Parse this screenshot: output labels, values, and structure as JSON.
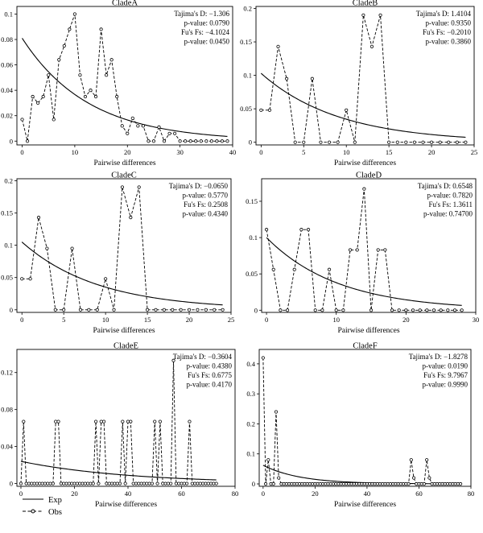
{
  "chart_data": [
    {
      "type": "line",
      "title": "CladeA",
      "xlabel": "Pairwise differences",
      "ylabel": "",
      "xlim": [
        -1,
        40
      ],
      "ylim": [
        -0.003,
        0.106
      ],
      "xticks": [
        0,
        10,
        20,
        30,
        40
      ],
      "yticks": [
        0,
        0.02,
        0.04,
        0.06,
        0.08,
        0.1
      ],
      "yticklabels": [
        "0",
        "0.02",
        "0.04",
        "0.06",
        "0.08",
        "0.1"
      ],
      "stats": [
        "Tajima's D: −1.306",
        "p-value: 0.0790",
        "Fu's Fs: −4.1024",
        "p-value: 0.0450"
      ],
      "exp": {
        "x0": 0,
        "y0": 0.081,
        "k": 0.0791,
        "x1": 39
      },
      "series": [
        {
          "name": "Obs",
          "x": [
            0,
            1,
            2,
            3,
            4,
            5,
            6,
            7,
            8,
            9,
            10,
            11,
            12,
            13,
            14,
            15,
            16,
            17,
            18,
            19,
            20,
            21,
            22,
            23,
            24,
            25,
            26,
            27,
            28,
            29,
            30,
            31,
            32,
            33,
            34,
            35,
            36,
            37,
            38,
            39
          ],
          "values": [
            0.017,
            0,
            0.035,
            0.03,
            0.035,
            0.052,
            0.017,
            0.064,
            0.075,
            0.088,
            0.1,
            0.052,
            0.035,
            0.04,
            0.035,
            0.088,
            0.052,
            0.064,
            0.035,
            0.012,
            0.006,
            0.018,
            0.012,
            0.012,
            0,
            0,
            0.011,
            0,
            0.006,
            0.006,
            0,
            0,
            0,
            0,
            0,
            0,
            0,
            0,
            0,
            0
          ]
        }
      ]
    },
    {
      "type": "line",
      "title": "CladeB",
      "xlabel": "Pairwise differences",
      "ylabel": "",
      "xlim": [
        -0.6,
        25
      ],
      "ylim": [
        -0.004,
        0.203
      ],
      "xticks": [
        0,
        5,
        10,
        15,
        20,
        25
      ],
      "yticks": [
        0,
        0.05,
        0.1,
        0.15,
        0.2
      ],
      "yticklabels": [
        "0",
        "0.05",
        "0.1",
        "0.15",
        "0.2"
      ],
      "stats": [
        "Tajima's D: 1.4104",
        "p-value: 0.9350",
        "Fu's Fs: −0.2010",
        "p-value: 0.3860"
      ],
      "exp": {
        "x0": 0,
        "y0": 0.103,
        "k": 0.1095,
        "x1": 24
      },
      "series": [
        {
          "name": "Obs",
          "x": [
            0,
            1,
            2,
            3,
            4,
            5,
            6,
            7,
            8,
            9,
            10,
            11,
            12,
            13,
            14,
            15,
            16,
            17,
            18,
            19,
            20,
            21,
            22,
            23,
            24
          ],
          "values": [
            0.048,
            0.048,
            0.143,
            0.095,
            0,
            0,
            0.095,
            0,
            0,
            0,
            0.048,
            0,
            0.19,
            0.143,
            0.19,
            0,
            0,
            0,
            0,
            0,
            0,
            0,
            0,
            0,
            0
          ]
        }
      ]
    },
    {
      "type": "line",
      "title": "CladeC",
      "xlabel": "Pairwise differences",
      "ylabel": "",
      "xlim": [
        -0.6,
        25
      ],
      "ylim": [
        -0.004,
        0.203
      ],
      "xticks": [
        0,
        5,
        10,
        15,
        20,
        25
      ],
      "yticks": [
        0,
        0.05,
        0.1,
        0.15,
        0.2
      ],
      "yticklabels": [
        "0",
        "0.05",
        "0.1",
        "0.15",
        "0.2"
      ],
      "stats": [
        "Tajima's D: −0.0650",
        "p-value: 0.5770",
        "Fu's Fs: 0.2508",
        "p-value: 0.4340"
      ],
      "exp": {
        "x0": 0,
        "y0": 0.105,
        "k": 0.1095,
        "x1": 24
      },
      "series": [
        {
          "name": "Obs",
          "x": [
            0,
            1,
            2,
            3,
            4,
            5,
            6,
            7,
            8,
            9,
            10,
            11,
            12,
            13,
            14,
            15,
            16,
            17,
            18,
            19,
            20,
            21,
            22,
            23,
            24
          ],
          "values": [
            0.048,
            0.048,
            0.143,
            0.095,
            0,
            0,
            0.095,
            0,
            0,
            0,
            0.048,
            0,
            0.19,
            0.143,
            0.19,
            0,
            0,
            0,
            0,
            0,
            0,
            0,
            0,
            0,
            0
          ]
        }
      ]
    },
    {
      "type": "line",
      "title": "CladeD",
      "xlabel": "Pairwise differences",
      "ylabel": "",
      "xlim": [
        -0.7,
        30
      ],
      "ylim": [
        -0.003,
        0.181
      ],
      "xticks": [
        0,
        10,
        20,
        30
      ],
      "yticks": [
        0,
        0.05,
        0.1,
        0.15
      ],
      "yticklabels": [
        "0",
        "0.05",
        "0.1",
        "0.15"
      ],
      "stats": [
        "Tajima's D: 0.6548",
        "p-value: 0.7820",
        "Fu's Fs: 1.3611",
        "p-value: 0.74700"
      ],
      "exp": {
        "x0": 0,
        "y0": 0.1,
        "k": 0.097,
        "x1": 28
      },
      "series": [
        {
          "name": "Obs",
          "x": [
            0,
            1,
            2,
            3,
            4,
            5,
            6,
            7,
            8,
            9,
            10,
            11,
            12,
            13,
            14,
            15,
            16,
            17,
            18,
            19,
            20,
            21,
            22,
            23,
            24,
            25,
            26,
            27,
            28
          ],
          "values": [
            0.111,
            0.056,
            0,
            0,
            0.056,
            0.111,
            0.111,
            0,
            0,
            0.056,
            0,
            0,
            0.083,
            0.083,
            0.167,
            0,
            0.083,
            0.083,
            0,
            0,
            0,
            0,
            0,
            0,
            0,
            0,
            0,
            0,
            0
          ]
        }
      ]
    },
    {
      "type": "line",
      "title": "CladeE",
      "xlabel": "Pairwise differences",
      "ylabel": "",
      "xlim": [
        -1.5,
        80
      ],
      "ylim": [
        -0.003,
        0.145
      ],
      "xticks": [
        0,
        20,
        40,
        60,
        80
      ],
      "yticks": [
        0,
        0.04,
        0.08,
        0.12
      ],
      "yticklabels": [
        "0",
        "0.04",
        "0.08",
        "0.12"
      ],
      "stats": [
        "Tajima's D: −0.3604",
        "p-value: 0.4380",
        "Fu's Fs: 0.6775",
        "p-value: 0.4170"
      ],
      "exp": {
        "x0": 0,
        "y0": 0.024,
        "k": 0.0248,
        "x1": 73
      },
      "series": [
        {
          "name": "Obs",
          "x": [
            0,
            1,
            2,
            3,
            4,
            5,
            6,
            7,
            8,
            9,
            10,
            11,
            12,
            13,
            14,
            15,
            16,
            17,
            18,
            19,
            20,
            21,
            22,
            23,
            24,
            25,
            26,
            27,
            28,
            29,
            30,
            31,
            32,
            33,
            34,
            35,
            36,
            37,
            38,
            39,
            40,
            41,
            42,
            43,
            44,
            45,
            46,
            47,
            48,
            49,
            50,
            51,
            52,
            53,
            54,
            55,
            56,
            57,
            58,
            59,
            60,
            61,
            62,
            63,
            64,
            65,
            66,
            67,
            68,
            69,
            70,
            71,
            72,
            73
          ],
          "values": [
            0,
            0.067,
            0,
            0,
            0,
            0,
            0,
            0,
            0,
            0,
            0,
            0,
            0,
            0.067,
            0.067,
            0,
            0,
            0,
            0,
            0,
            0,
            0,
            0,
            0,
            0,
            0,
            0,
            0,
            0.067,
            0,
            0.067,
            0.067,
            0,
            0,
            0,
            0,
            0,
            0,
            0.067,
            0,
            0.067,
            0.067,
            0,
            0,
            0,
            0,
            0,
            0,
            0,
            0,
            0.067,
            0,
            0.067,
            0,
            0,
            0,
            0,
            0.133,
            0,
            0,
            0,
            0,
            0,
            0.067,
            0,
            0,
            0,
            0,
            0,
            0,
            0,
            0,
            0,
            0
          ]
        }
      ]
    },
    {
      "type": "line",
      "title": "CladeF",
      "xlabel": "Pairwise differences",
      "ylabel": "",
      "xlim": [
        -1.5,
        80
      ],
      "ylim": [
        -0.008,
        0.448
      ],
      "xticks": [
        0,
        20,
        40,
        60,
        80
      ],
      "yticks": [
        0,
        0.1,
        0.2,
        0.3,
        0.4
      ],
      "yticklabels": [
        "0",
        "0.1",
        "0.2",
        "0.3",
        "0.4"
      ],
      "stats": [
        "Tajima's D: −1.8278",
        "p-value: 0.0190",
        "Fu's Fs: 9.7967",
        "p-value: 0.9990"
      ],
      "exp": {
        "x0": 0,
        "y0": 0.062,
        "k": 0.07,
        "x1": 76
      },
      "series": [
        {
          "name": "Obs",
          "x": [
            0,
            1,
            2,
            3,
            4,
            5,
            6,
            7,
            8,
            9,
            10,
            11,
            12,
            13,
            14,
            15,
            16,
            17,
            18,
            19,
            20,
            21,
            22,
            23,
            24,
            25,
            26,
            27,
            28,
            29,
            30,
            31,
            32,
            33,
            34,
            35,
            36,
            37,
            38,
            39,
            40,
            41,
            42,
            43,
            44,
            45,
            46,
            47,
            48,
            49,
            50,
            51,
            52,
            53,
            54,
            55,
            56,
            57,
            58,
            59,
            60,
            61,
            62,
            63,
            64,
            65,
            66,
            67,
            68,
            69,
            70,
            71,
            72,
            73,
            74,
            75,
            76
          ],
          "values": [
            0.42,
            0,
            0.08,
            0,
            0,
            0.24,
            0.02,
            0,
            0,
            0,
            0,
            0,
            0,
            0,
            0,
            0,
            0,
            0,
            0,
            0,
            0,
            0,
            0,
            0,
            0,
            0,
            0,
            0,
            0,
            0,
            0,
            0,
            0,
            0,
            0,
            0,
            0,
            0,
            0,
            0,
            0,
            0,
            0,
            0,
            0,
            0,
            0,
            0,
            0,
            0,
            0,
            0,
            0,
            0,
            0,
            0,
            0,
            0.08,
            0.02,
            0,
            0,
            0,
            0,
            0.08,
            0.02,
            0,
            0,
            0,
            0,
            0,
            0,
            0,
            0,
            0,
            0,
            0,
            0
          ]
        }
      ]
    }
  ],
  "legend": {
    "exp_label": "Exp",
    "obs_label": "Obs"
  }
}
